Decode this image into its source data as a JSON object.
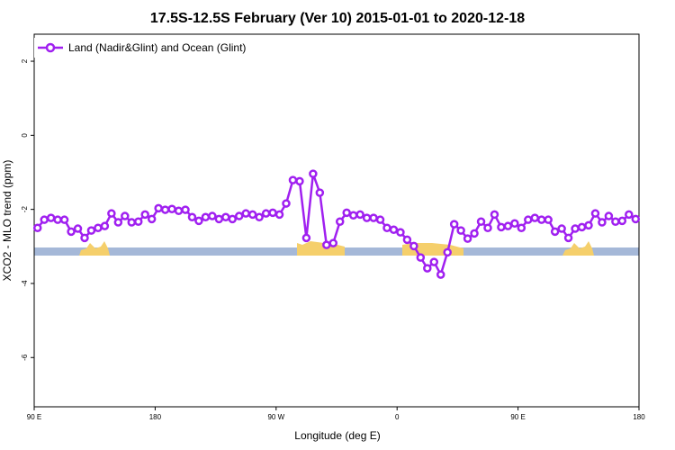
{
  "chart_data": {
    "type": "line",
    "title": "17.5S-12.5S February (Ver 10)   2015-01-01 to 2020-12-18",
    "x_label": "Longitude (deg E)",
    "y_label": "XCO2 - MLO trend (ppm)",
    "x": [
      92.5,
      97.5,
      102.5,
      107.5,
      112.5,
      117.5,
      122.5,
      127.5,
      132.5,
      137.5,
      142.5,
      147.5,
      152.5,
      157.5,
      162.5,
      167.5,
      172.5,
      177.5,
      182.5,
      187.5,
      192.5,
      197.5,
      202.5,
      207.5,
      212.5,
      217.5,
      222.5,
      227.5,
      232.5,
      237.5,
      242.5,
      247.5,
      252.5,
      257.5,
      262.5,
      267.5,
      272.5,
      277.5,
      282.5,
      287.5,
      292.5,
      297.5,
      302.5,
      307.5,
      312.5,
      317.5,
      322.5,
      327.5,
      332.5,
      337.5,
      342.5,
      347.5,
      352.5,
      357.5,
      362.5,
      367.5,
      372.5,
      377.5,
      382.5,
      387.5,
      392.5,
      397.5,
      402.5,
      407.5,
      412.5,
      417.5,
      422.5,
      427.5,
      432.5,
      437.5,
      442.5,
      447.5,
      452.5,
      457.5,
      462.5,
      467.5,
      472.5,
      477.5,
      482.5,
      487.5,
      492.5,
      497.5,
      502.5,
      507.5,
      512.5,
      517.5,
      522.5,
      527.5,
      532.5,
      537.5
    ],
    "series": [
      {
        "name": "Land (Nadir&Glint) and Ocean (Glint)",
        "color": "#a020f0",
        "values": [
          -2.5,
          -2.28,
          -2.23,
          -2.28,
          -2.28,
          -2.6,
          -2.52,
          -2.77,
          -2.57,
          -2.5,
          -2.45,
          -2.11,
          -2.35,
          -2.18,
          -2.35,
          -2.33,
          -2.14,
          -2.26,
          -1.97,
          -2.01,
          -1.99,
          -2.04,
          -2.01,
          -2.21,
          -2.31,
          -2.21,
          -2.18,
          -2.26,
          -2.21,
          -2.26,
          -2.18,
          -2.11,
          -2.14,
          -2.21,
          -2.11,
          -2.09,
          -2.14,
          -1.84,
          -1.21,
          -1.24,
          -2.77,
          -1.04,
          -1.55,
          -2.96,
          -2.91,
          -2.33,
          -2.09,
          -2.16,
          -2.14,
          -2.23,
          -2.23,
          -2.28,
          -2.5,
          -2.55,
          -2.62,
          -2.82,
          -2.99,
          -3.3,
          -3.59,
          -3.42,
          -3.76,
          -3.16,
          -2.4,
          -2.57,
          -2.79,
          -2.65,
          -2.33,
          -2.5,
          -2.14,
          -2.48,
          -2.45,
          -2.38,
          -2.5,
          -2.28,
          -2.23,
          -2.28,
          -2.28,
          -2.6,
          -2.52,
          -2.77,
          -2.52,
          -2.48,
          -2.43,
          -2.11,
          -2.35,
          -2.18,
          -2.33,
          -2.31,
          -2.14,
          -2.26
        ]
      }
    ],
    "xlim": [
      90,
      540
    ],
    "ylim": [
      -7.33,
      2.73
    ],
    "xticks": [
      {
        "value": 90,
        "label": "90 E"
      },
      180,
      {
        "value": 270,
        "label": "90 W"
      },
      {
        "value": 360,
        "label": "0"
      },
      {
        "value": 450,
        "label": "90 E"
      },
      180
    ],
    "yticks": [
      2,
      0,
      -2,
      -4,
      -6
    ],
    "legend": "top-left"
  }
}
